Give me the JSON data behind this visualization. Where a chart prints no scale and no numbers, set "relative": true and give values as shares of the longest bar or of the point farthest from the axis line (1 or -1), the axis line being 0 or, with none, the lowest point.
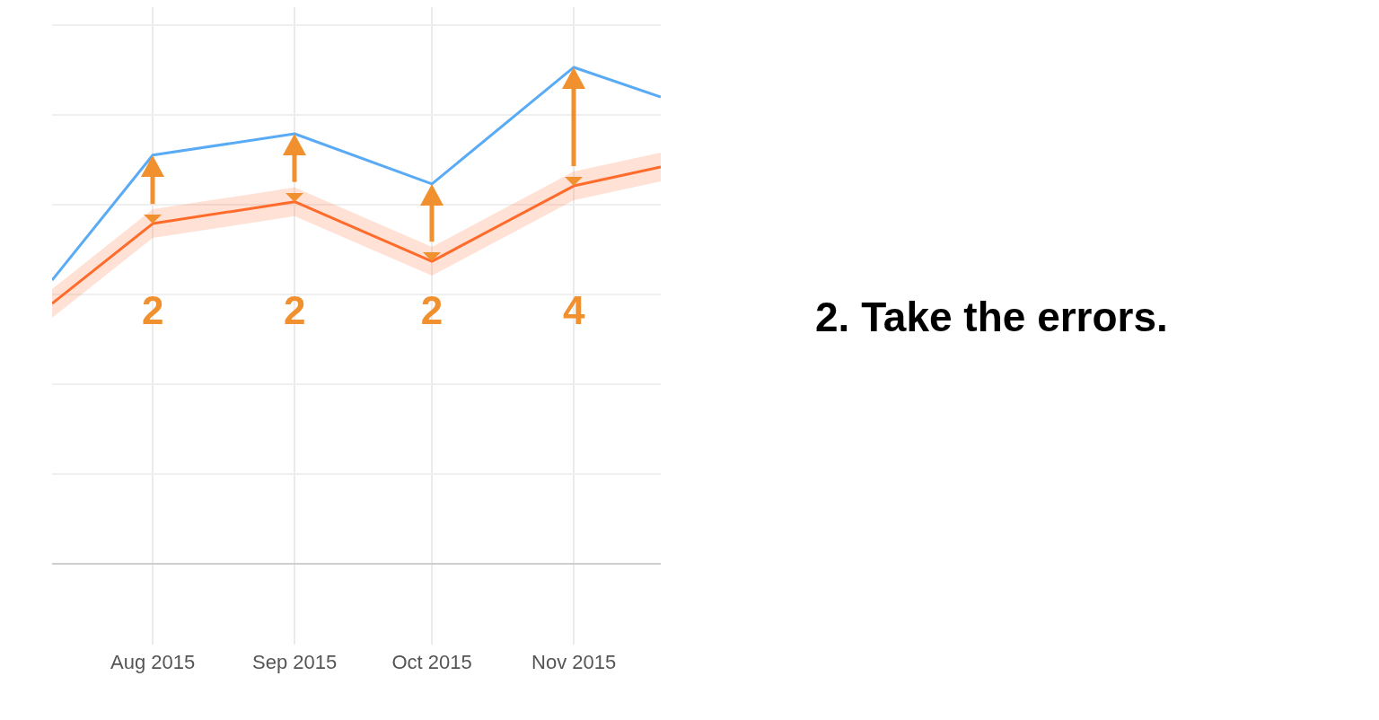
{
  "chart_data": {
    "type": "line",
    "relative": true,
    "grid": true,
    "legend": false,
    "x": [
      "2015-07-10",
      "2015-08-01",
      "2015-09-01",
      "2015-10-01",
      "2015-11-01",
      "2015-11-20"
    ],
    "xlim": [
      "2015-07-10",
      "2015-11-20"
    ],
    "xticks": [
      {
        "value": "2015-08-01",
        "label": "Aug 2015"
      },
      {
        "value": "2015-09-01",
        "label": "Sep 2015"
      },
      {
        "value": "2015-10-01",
        "label": "Oct 2015"
      },
      {
        "value": "2015-11-01",
        "label": "Nov 2015"
      }
    ],
    "series": [
      {
        "color": "#5aabf5",
        "values": [
          0.571,
          0.823,
          0.866,
          0.765,
          1,
          0.94
        ]
      },
      {
        "color": "#ff6b2b",
        "values": [
          0.524,
          0.685,
          0.729,
          0.609,
          0.761,
          0.799
        ],
        "lower": [
          0.495,
          0.656,
          0.7,
          0.58,
          0.732,
          0.77
        ],
        "upper": [
          0.553,
          0.714,
          0.758,
          0.638,
          0.79,
          0.828
        ]
      }
    ],
    "annotations": [
      "2",
      "2",
      "2",
      "4",
      "2. Take the errors."
    ]
  }
}
